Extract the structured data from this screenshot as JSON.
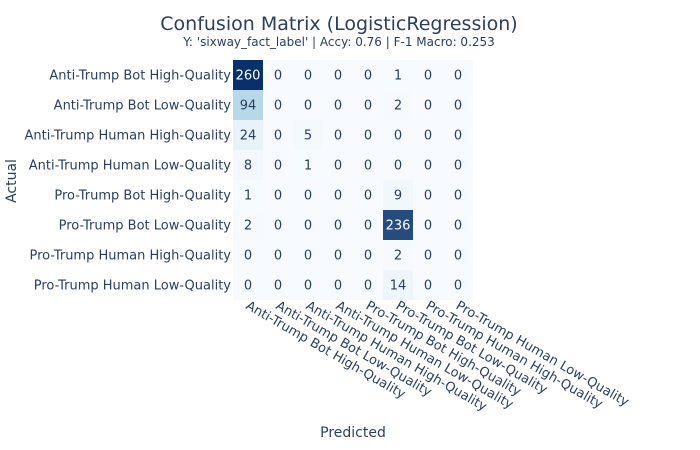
{
  "chart_data": {
    "type": "heatmap",
    "title": "Confusion Matrix (LogisticRegression)",
    "subtitle": "Y: 'sixway_fact_label' | Accy: 0.76 | F-1 Macro: 0.253",
    "xlabel": "Predicted",
    "ylabel": "Actual",
    "rows": [
      "Anti-Trump Bot High-Quality",
      "Anti-Trump Bot Low-Quality",
      "Anti-Trump Human High-Quality",
      "Anti-Trump Human Low-Quality",
      "Pro-Trump Bot High-Quality",
      "Pro-Trump Bot Low-Quality",
      "Pro-Trump Human High-Quality",
      "Pro-Trump Human Low-Quality"
    ],
    "columns": [
      "Anti-Trump Bot High-Quality",
      "Anti-Trump Bot Low-Quality",
      "Anti-Trump Human High-Quality",
      "Anti-Trump Human Low-Quality",
      "Pro-Trump Bot High-Quality",
      "Pro-Trump Bot Low-Quality",
      "Pro-Trump Human High-Quality",
      "Pro-Trump Human Low-Quality"
    ],
    "values": [
      [
        260,
        0,
        0,
        0,
        0,
        1,
        0,
        0
      ],
      [
        94,
        0,
        0,
        0,
        0,
        2,
        0,
        0
      ],
      [
        24,
        0,
        5,
        0,
        0,
        0,
        0,
        0
      ],
      [
        8,
        0,
        1,
        0,
        0,
        0,
        0,
        0
      ],
      [
        1,
        0,
        0,
        0,
        0,
        9,
        0,
        0
      ],
      [
        2,
        0,
        0,
        0,
        0,
        236,
        0,
        0
      ],
      [
        0,
        0,
        0,
        0,
        0,
        2,
        0,
        0
      ],
      [
        0,
        0,
        0,
        0,
        0,
        14,
        0,
        0
      ]
    ],
    "colorscale": {
      "low": "#f7fbff",
      "mid": "#9ecae1",
      "high": "#08306b"
    },
    "text_color_dark": "#2a3f5f",
    "text_color_light": "#ffffff"
  }
}
